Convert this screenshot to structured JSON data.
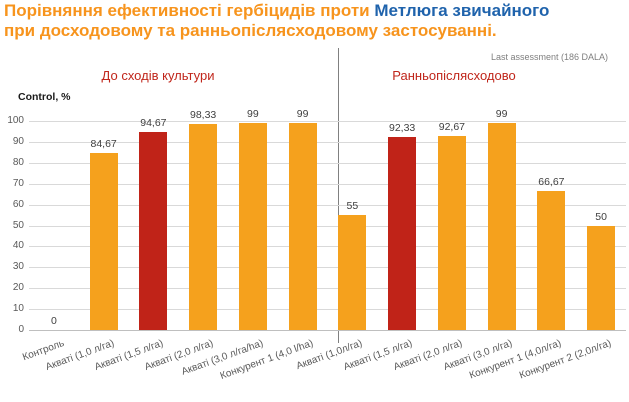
{
  "title": {
    "line1_orange": "Порівняння ефективності гербіцидів проти ",
    "line1_blue": "Метлюга звичайного",
    "line2_orange": "при досходовому та ранньопіслясходовому застосуванні."
  },
  "annotation": "Last assessment (186 DALA)",
  "y_axis": {
    "label": "Control, %",
    "ticks": [
      0,
      10,
      20,
      30,
      40,
      50,
      60,
      70,
      80,
      90,
      100
    ]
  },
  "colors": {
    "bar_orange": "#F5A11D",
    "bar_red": "#C02318",
    "title_orange": "#F7941D",
    "title_blue": "#1F63AC",
    "group_header_red": "#C0261B"
  },
  "chart_data": {
    "type": "bar",
    "title": "Порівняння ефективності гербіцидів проти Метлюга звичайного при досходовому та ранньопіслясходовому застосуванні.",
    "subtitle": "Last assessment (186 DALA)",
    "ylabel": "Control, %",
    "ylim": [
      0,
      100
    ],
    "grid": true,
    "legend_position": "none",
    "groups": [
      {
        "name": "До сходів культури",
        "bars": [
          {
            "category": "Контроль",
            "value": 0,
            "label": "0",
            "color": "orange"
          },
          {
            "category": "Акваті  (1,0 л/га)",
            "value": 84.67,
            "label": "84,67",
            "color": "orange"
          },
          {
            "category": "Акваті  (1,5 л/га)",
            "value": 94.67,
            "label": "94,67",
            "color": "red"
          },
          {
            "category": "Акваті  (2,0 л/га)",
            "value": 98.33,
            "label": "98,33",
            "color": "orange"
          },
          {
            "category": "Акваті (3,0 л/га/ha)",
            "value": 99,
            "label": "99",
            "color": "orange"
          },
          {
            "category": "Конкурент 1  (4,0 l/ha)",
            "value": 99,
            "label": "99",
            "color": "orange"
          }
        ]
      },
      {
        "name": "Ранньопіслясходово",
        "bars": [
          {
            "category": "Акваті  (1,0л/га)",
            "value": 55,
            "label": "55",
            "color": "orange"
          },
          {
            "category": "Акваті (1,5 л/га)",
            "value": 92.33,
            "label": "92,33",
            "color": "red"
          },
          {
            "category": "Акваті (2,0 л/га)",
            "value": 92.67,
            "label": "92,67",
            "color": "orange"
          },
          {
            "category": "Акваті (3,0 л/га)",
            "value": 99,
            "label": "99",
            "color": "orange"
          },
          {
            "category": "Конкурент 1  (4,0л/га)",
            "value": 66.67,
            "label": "66,67",
            "color": "orange"
          },
          {
            "category": "Конкурент 2 (2,0л/га)",
            "value": 50,
            "label": "50",
            "color": "orange"
          }
        ]
      }
    ]
  }
}
